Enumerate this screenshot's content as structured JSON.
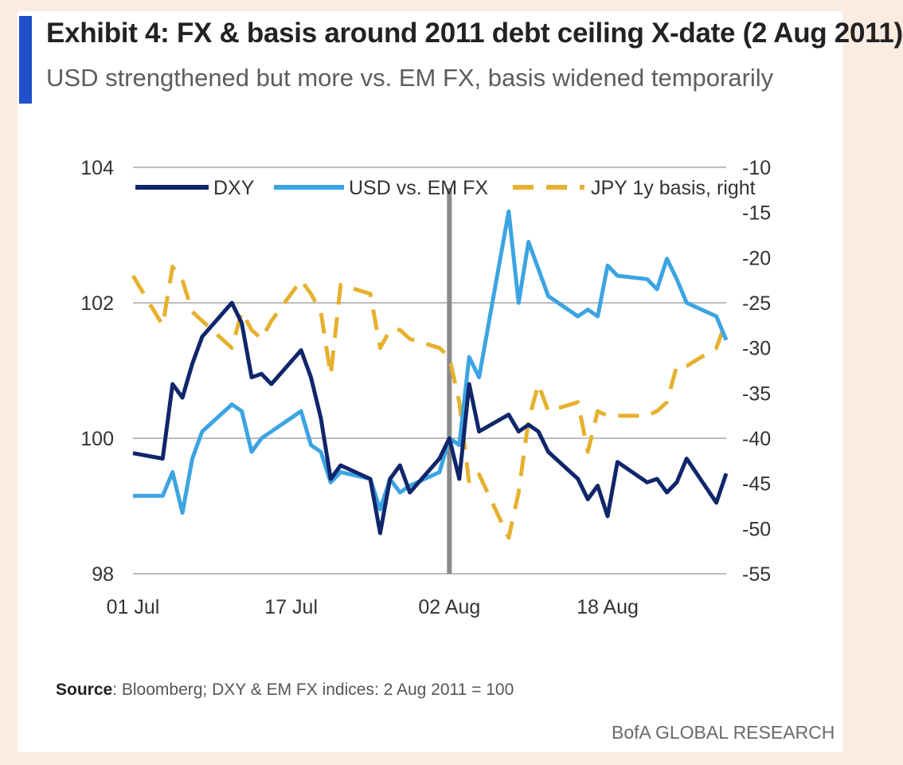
{
  "header": {
    "title": "Exhibit 4: FX & basis around 2011 debt ceiling X-date (2 Aug 2011)",
    "subtitle": "USD strengthened but more vs. EM FX, basis widened temporarily"
  },
  "footer": {
    "source_label": "Source",
    "source_text": ": Bloomberg; DXY & EM FX indices: 2 Aug 2011 = 100",
    "brand": "BofA GLOBAL RESEARCH"
  },
  "colors": {
    "accent": "#1f4fc9",
    "dxy": "#10266b",
    "em_fx": "#3ca4e2",
    "basis": "#e6b12f",
    "grid": "#bdbdbd",
    "marker": "#8a8a8a"
  },
  "chart_data": {
    "type": "line",
    "title": "Exhibit 4: FX & basis around 2011 debt ceiling X-date (2 Aug 2011)",
    "x_start": "2011-07-01",
    "x_end": "2011-08-30",
    "x_ticks": [
      {
        "date": "2011-07-01",
        "label": "01 Jul"
      },
      {
        "date": "2011-07-17",
        "label": "17 Jul"
      },
      {
        "date": "2011-08-02",
        "label": "02 Aug"
      },
      {
        "date": "2011-08-18",
        "label": "18 Aug"
      }
    ],
    "y_left": {
      "min": 98,
      "max": 104,
      "ticks": [
        98,
        100,
        102,
        104
      ]
    },
    "y_right": {
      "min": -55,
      "max": -10,
      "ticks": [
        -10,
        -15,
        -20,
        -25,
        -30,
        -35,
        -40,
        -45,
        -50,
        -55
      ]
    },
    "grid": true,
    "legend_position": "top",
    "vertical_marker": {
      "date": "2011-08-02"
    },
    "series": [
      {
        "name": "DXY",
        "axis": "left",
        "style": "solid",
        "x": [
          "2011-07-01",
          "2011-07-04",
          "2011-07-05",
          "2011-07-06",
          "2011-07-07",
          "2011-07-08",
          "2011-07-11",
          "2011-07-12",
          "2011-07-13",
          "2011-07-14",
          "2011-07-15",
          "2011-07-18",
          "2011-07-19",
          "2011-07-20",
          "2011-07-21",
          "2011-07-22",
          "2011-07-25",
          "2011-07-26",
          "2011-07-27",
          "2011-07-28",
          "2011-07-29",
          "2011-08-01",
          "2011-08-02",
          "2011-08-03",
          "2011-08-04",
          "2011-08-05",
          "2011-08-08",
          "2011-08-09",
          "2011-08-10",
          "2011-08-11",
          "2011-08-12",
          "2011-08-15",
          "2011-08-16",
          "2011-08-17",
          "2011-08-18",
          "2011-08-19",
          "2011-08-22",
          "2011-08-23",
          "2011-08-24",
          "2011-08-25",
          "2011-08-26",
          "2011-08-29",
          "2011-08-30"
        ],
        "values": [
          99.78,
          99.7,
          100.8,
          100.6,
          101.1,
          101.5,
          102.0,
          101.7,
          100.9,
          100.95,
          100.8,
          101.3,
          100.9,
          100.3,
          99.4,
          99.6,
          99.4,
          98.6,
          99.4,
          99.6,
          99.2,
          99.7,
          100.0,
          99.4,
          100.8,
          100.1,
          100.35,
          100.1,
          100.2,
          100.1,
          99.8,
          99.4,
          99.1,
          99.3,
          98.85,
          99.65,
          99.35,
          99.4,
          99.2,
          99.35,
          99.7,
          99.05,
          99.48
        ]
      },
      {
        "name": "USD vs. EM FX",
        "axis": "left",
        "style": "solid",
        "x": [
          "2011-07-01",
          "2011-07-04",
          "2011-07-05",
          "2011-07-06",
          "2011-07-07",
          "2011-07-08",
          "2011-07-11",
          "2011-07-12",
          "2011-07-13",
          "2011-07-14",
          "2011-07-15",
          "2011-07-18",
          "2011-07-19",
          "2011-07-20",
          "2011-07-21",
          "2011-07-22",
          "2011-07-25",
          "2011-07-26",
          "2011-07-27",
          "2011-07-28",
          "2011-07-29",
          "2011-08-01",
          "2011-08-02",
          "2011-08-03",
          "2011-08-04",
          "2011-08-05",
          "2011-08-08",
          "2011-08-09",
          "2011-08-10",
          "2011-08-11",
          "2011-08-12",
          "2011-08-15",
          "2011-08-16",
          "2011-08-17",
          "2011-08-18",
          "2011-08-19",
          "2011-08-22",
          "2011-08-23",
          "2011-08-24",
          "2011-08-25",
          "2011-08-26",
          "2011-08-29",
          "2011-08-30"
        ],
        "values": [
          99.15,
          99.15,
          99.5,
          98.9,
          99.7,
          100.1,
          100.5,
          100.4,
          99.8,
          100.0,
          100.1,
          100.4,
          99.9,
          99.8,
          99.35,
          99.5,
          99.4,
          98.95,
          99.4,
          99.2,
          99.3,
          99.5,
          100.0,
          99.9,
          101.2,
          100.9,
          103.35,
          102.0,
          102.9,
          102.5,
          102.1,
          101.8,
          101.9,
          101.8,
          102.55,
          102.4,
          102.35,
          102.2,
          102.65,
          102.35,
          102.0,
          101.8,
          101.45
        ]
      },
      {
        "name": "JPY 1y basis, right",
        "axis": "right",
        "style": "dashed",
        "x": [
          "2011-07-01",
          "2011-07-04",
          "2011-07-05",
          "2011-07-06",
          "2011-07-07",
          "2011-07-08",
          "2011-07-11",
          "2011-07-12",
          "2011-07-13",
          "2011-07-14",
          "2011-07-15",
          "2011-07-18",
          "2011-07-19",
          "2011-07-20",
          "2011-07-21",
          "2011-07-22",
          "2011-07-25",
          "2011-07-26",
          "2011-07-27",
          "2011-07-28",
          "2011-07-29",
          "2011-08-01",
          "2011-08-02",
          "2011-08-03",
          "2011-08-04",
          "2011-08-05",
          "2011-08-08",
          "2011-08-09",
          "2011-08-10",
          "2011-08-11",
          "2011-08-12",
          "2011-08-15",
          "2011-08-16",
          "2011-08-17",
          "2011-08-18",
          "2011-08-19",
          "2011-08-22",
          "2011-08-23",
          "2011-08-24",
          "2011-08-25",
          "2011-08-26",
          "2011-08-29",
          "2011-08-30"
        ],
        "values": [
          -22,
          -27.5,
          -21,
          -22.5,
          -26,
          -27,
          -30,
          -26,
          -28,
          -29,
          -27,
          -22.5,
          -24,
          -26,
          -33,
          -23,
          -24,
          -30,
          -28,
          -28,
          -29,
          -30,
          -31,
          -36,
          -45,
          -44,
          -51,
          -46,
          -38,
          -34,
          -37,
          -36,
          -41.5,
          -37,
          -37.5,
          -37.5,
          -37.5,
          -37,
          -36,
          -32,
          -32,
          -30,
          -27
        ]
      }
    ]
  }
}
